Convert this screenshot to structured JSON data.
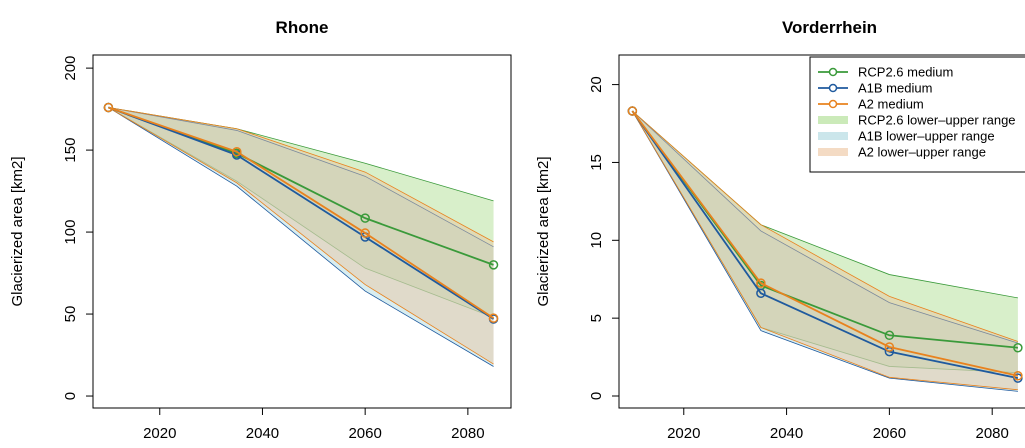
{
  "chart_data": [
    {
      "type": "line",
      "title": "Rhone",
      "ylabel": "Glacierized area [km2]",
      "x": [
        2010,
        2035,
        2060,
        2085
      ],
      "xlim": [
        2007,
        2088.4
      ],
      "ylim": [
        -7.3,
        208
      ],
      "xticks": [
        2020,
        2040,
        2060,
        2080
      ],
      "yticks": [
        0,
        50,
        100,
        150,
        200
      ],
      "legend": false,
      "series": [
        {
          "color": "#3a9a3a",
          "values": [
            176,
            148,
            108.5,
            80
          ]
        },
        {
          "color": "#1f5a9e",
          "values": [
            176,
            147,
            97,
            47
          ]
        },
        {
          "color": "#e8821e",
          "values": [
            176,
            149,
            99.4,
            47.5
          ]
        }
      ],
      "ranges": [
        {
          "color": "#a8dc8a",
          "line": "#3a9a3a",
          "lower": [
            176,
            131,
            78,
            48
          ],
          "upper": [
            176,
            163,
            142,
            119
          ]
        },
        {
          "color": "#a9d6de",
          "line": "#1f5a9e",
          "lower": [
            176,
            128,
            64,
            18
          ],
          "upper": [
            176,
            162,
            134,
            91
          ]
        },
        {
          "color": "#ecc39c",
          "line": "#e8821e",
          "lower": [
            176,
            130,
            68,
            19.5
          ],
          "upper": [
            176,
            163,
            136.6,
            94
          ]
        }
      ]
    },
    {
      "type": "line",
      "title": "Vorderrhein",
      "ylabel": "Glacierized area [km2]",
      "x": [
        2010,
        2035,
        2060,
        2085
      ],
      "xlim": [
        2007.4,
        2089.3
      ],
      "ylim": [
        -0.77,
        21.9
      ],
      "xticks": [
        2020,
        2040,
        2060,
        2080
      ],
      "yticks": [
        0,
        5,
        10,
        15,
        20
      ],
      "legend": true,
      "series": [
        {
          "name": "RCP2.6 medium",
          "color": "#3a9a3a",
          "values": [
            18.3,
            7.1,
            3.9,
            3.1
          ]
        },
        {
          "name": "A1B medium",
          "color": "#1f5a9e",
          "values": [
            18.3,
            6.6,
            2.85,
            1.15
          ]
        },
        {
          "name": "A2 medium",
          "color": "#e8821e",
          "values": [
            18.3,
            7.25,
            3.15,
            1.3
          ]
        }
      ],
      "ranges": [
        {
          "name": "RCP2.6 lower–upper range",
          "color": "#a8dc8a",
          "line": "#3a9a3a",
          "lower": [
            18.3,
            4.4,
            1.9,
            1.5
          ],
          "upper": [
            18.3,
            11.0,
            7.8,
            6.3
          ]
        },
        {
          "name": "A1B lower–upper range",
          "color": "#a9d6de",
          "line": "#1f5a9e",
          "lower": [
            18.3,
            4.2,
            1.15,
            0.3
          ],
          "upper": [
            18.3,
            10.6,
            6.0,
            3.4
          ]
        },
        {
          "name": "A2 lower–upper range",
          "color": "#ecc39c",
          "line": "#e8821e",
          "lower": [
            18.3,
            4.4,
            1.2,
            0.4
          ],
          "upper": [
            18.3,
            11.0,
            6.4,
            3.5
          ]
        }
      ]
    }
  ]
}
